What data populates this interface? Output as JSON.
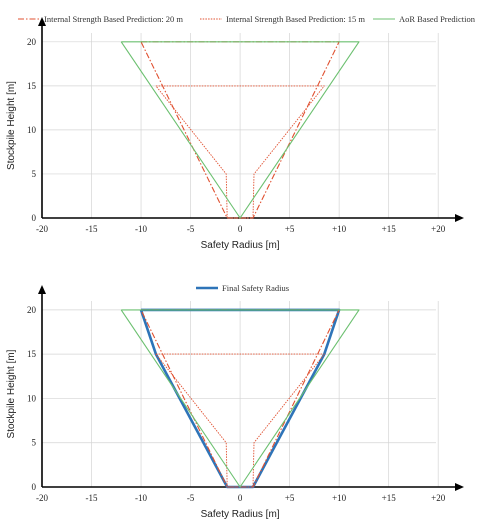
{
  "chart_data": [
    {
      "type": "line",
      "xlabel": "Safety Radius [m]",
      "ylabel": "Stockpile Height [m]",
      "xlim": [
        -20,
        22
      ],
      "ylim": [
        0,
        21
      ],
      "xticks": [
        -20,
        -15,
        -10,
        -5,
        0,
        5,
        10,
        15,
        20
      ],
      "xtick_labels": [
        "-20",
        "-15",
        "-10",
        "-5",
        "0",
        "+5",
        "+10",
        "+15",
        "+20"
      ],
      "yticks": [
        0,
        5,
        10,
        15,
        20
      ],
      "ytick_labels": [
        "0",
        "5",
        "10",
        "15",
        "20"
      ],
      "grid": true,
      "legend_position": "top",
      "series": [
        {
          "name": "Internal Strength Based Prediction: 20 m",
          "style": "dash-dot",
          "color": "#e05030",
          "points": [
            [
              -10,
              20
            ],
            [
              10,
              20
            ],
            [
              1.3,
              0
            ],
            [
              -1.3,
              0
            ],
            [
              -10,
              20
            ]
          ]
        },
        {
          "name": "Internal Strength Based Prediction: 15 m",
          "style": "dotted-outline",
          "color": "#e05030",
          "points": [
            [
              -8.5,
              15
            ],
            [
              8.5,
              15
            ],
            [
              1.4,
              5
            ],
            [
              1.3,
              0
            ],
            [
              -1.3,
              0
            ],
            [
              -1.4,
              5
            ],
            [
              -8.5,
              15
            ]
          ]
        },
        {
          "name": "AoR Based Prediction",
          "style": "solid",
          "color": "#6cc070",
          "points": [
            [
              -12,
              20
            ],
            [
              12,
              20
            ],
            [
              0,
              0
            ],
            [
              -12,
              20
            ]
          ]
        }
      ]
    },
    {
      "type": "line",
      "xlabel": "Safety Radius [m]",
      "ylabel": "Stockpile Height [m]",
      "xlim": [
        -20,
        22
      ],
      "ylim": [
        0,
        21
      ],
      "xticks": [
        -20,
        -15,
        -10,
        -5,
        0,
        5,
        10,
        15,
        20
      ],
      "xtick_labels": [
        "-20",
        "-15",
        "-10",
        "-5",
        "0",
        "+5",
        "+10",
        "+15",
        "+20"
      ],
      "yticks": [
        0,
        5,
        10,
        15,
        20
      ],
      "ytick_labels": [
        "0",
        "5",
        "10",
        "15",
        "20"
      ],
      "grid": true,
      "legend_position": "top",
      "series": [
        {
          "name": "Final Safety Radius",
          "style": "solid-thick",
          "color": "#2e74b8",
          "points": [
            [
              -10,
              20
            ],
            [
              10,
              20
            ],
            [
              8.5,
              15
            ],
            [
              1.3,
              0
            ],
            [
              -1.3,
              0
            ],
            [
              -8.5,
              15
            ],
            [
              -10,
              20
            ]
          ]
        },
        {
          "style": "dash-dot",
          "color": "#e05030",
          "points": [
            [
              -10,
              20
            ],
            [
              10,
              20
            ],
            [
              1.3,
              0
            ],
            [
              -1.3,
              0
            ],
            [
              -10,
              20
            ]
          ]
        },
        {
          "style": "dotted-outline",
          "color": "#e05030",
          "points": [
            [
              -8.5,
              15
            ],
            [
              8.5,
              15
            ],
            [
              1.4,
              5
            ],
            [
              1.3,
              0
            ],
            [
              -1.3,
              0
            ],
            [
              -1.4,
              5
            ],
            [
              -8.5,
              15
            ]
          ]
        },
        {
          "style": "solid",
          "color": "#6cc070",
          "points": [
            [
              -12,
              20
            ],
            [
              12,
              20
            ],
            [
              0,
              0
            ],
            [
              -12,
              20
            ]
          ]
        }
      ]
    }
  ]
}
